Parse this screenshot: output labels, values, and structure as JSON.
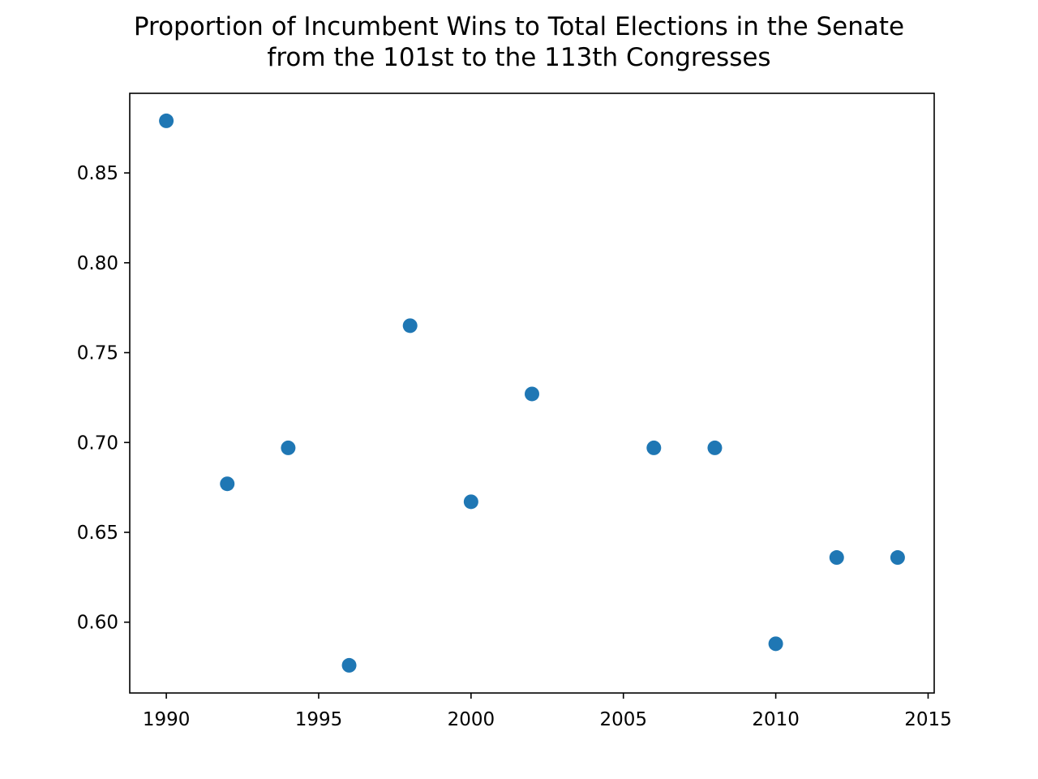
{
  "chart_data": {
    "type": "scatter",
    "title_lines": [
      "Proportion of Incumbent Wins to Total Elections in the Senate",
      "from the 101st to the 113th Congresses"
    ],
    "xlabel": "",
    "ylabel": "",
    "x": [
      1990,
      1992,
      1994,
      1996,
      1998,
      2000,
      2002,
      2006,
      2008,
      2010,
      2012,
      2014
    ],
    "y": [
      0.879,
      0.677,
      0.697,
      0.576,
      0.765,
      0.667,
      0.727,
      0.697,
      0.697,
      0.588,
      0.636,
      0.636
    ],
    "xlim": [
      1988.8,
      2015.2
    ],
    "ylim": [
      0.5606,
      0.8943
    ],
    "xticks": [
      1990,
      1995,
      2000,
      2005,
      2010,
      2015
    ],
    "xtick_labels": [
      "1990",
      "1995",
      "2000",
      "2005",
      "2010",
      "2015"
    ],
    "yticks": [
      0.6,
      0.65,
      0.7,
      0.75,
      0.8,
      0.85
    ],
    "ytick_labels": [
      "0.60",
      "0.65",
      "0.70",
      "0.75",
      "0.80",
      "0.85"
    ],
    "marker_color": "#1f77b4",
    "grid": false,
    "legend": false
  }
}
